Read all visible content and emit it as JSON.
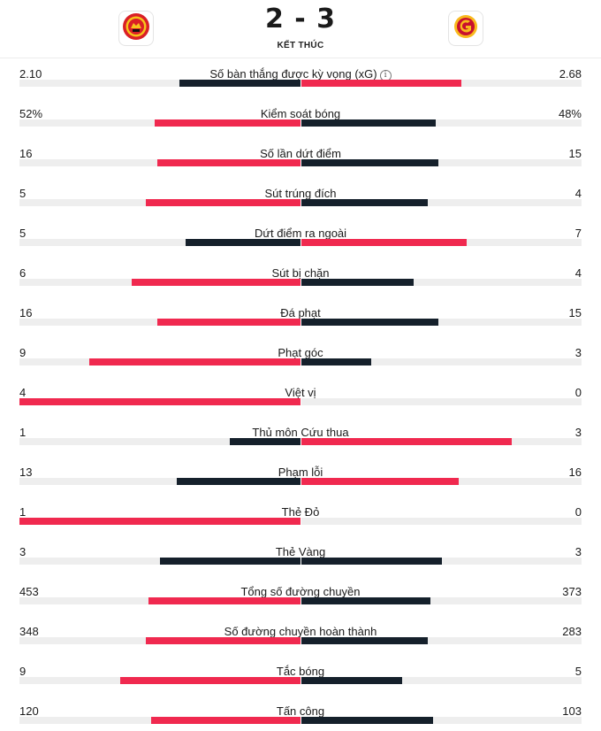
{
  "match": {
    "home_score": "2",
    "separator": "-",
    "away_score": "3",
    "status": "KẾT THÚC",
    "home_crest_icon": "manchester-united-crest-icon",
    "away_crest_icon": "galatasaray-crest-icon"
  },
  "colors": {
    "leader": "#f0294f",
    "trailer": "#15202b",
    "track": "#eeeeee"
  },
  "stats": [
    {
      "name": "Số bàn thắng được kỳ vọng (xG)",
      "home": "2.10",
      "away": "2.68",
      "home_frac": 0.43,
      "away_frac": 0.57,
      "home_color": "dark",
      "away_color": "red",
      "info": true
    },
    {
      "name": "Kiểm soát bóng",
      "home": "52%",
      "away": "48%",
      "home_frac": 0.52,
      "away_frac": 0.48,
      "home_color": "red",
      "away_color": "dark"
    },
    {
      "name": "Số lần dứt điểm",
      "home": "16",
      "away": "15",
      "home_frac": 0.51,
      "away_frac": 0.49,
      "home_color": "red",
      "away_color": "dark"
    },
    {
      "name": "Sút trúng đích",
      "home": "5",
      "away": "4",
      "home_frac": 0.55,
      "away_frac": 0.45,
      "home_color": "red",
      "away_color": "dark"
    },
    {
      "name": "Dứt điểm ra ngoài",
      "home": "5",
      "away": "7",
      "home_frac": 0.41,
      "away_frac": 0.59,
      "home_color": "dark",
      "away_color": "red"
    },
    {
      "name": "Sút bị chặn",
      "home": "6",
      "away": "4",
      "home_frac": 0.6,
      "away_frac": 0.4,
      "home_color": "red",
      "away_color": "dark"
    },
    {
      "name": "Đá phạt",
      "home": "16",
      "away": "15",
      "home_frac": 0.51,
      "away_frac": 0.49,
      "home_color": "red",
      "away_color": "dark"
    },
    {
      "name": "Phạt góc",
      "home": "9",
      "away": "3",
      "home_frac": 0.75,
      "away_frac": 0.25,
      "home_color": "red",
      "away_color": "dark"
    },
    {
      "name": "Việt vị",
      "home": "4",
      "away": "0",
      "home_frac": 1.0,
      "away_frac": 0.0,
      "home_color": "red",
      "away_color": "dark"
    },
    {
      "name": "Thủ môn Cứu thua",
      "home": "1",
      "away": "3",
      "home_frac": 0.25,
      "away_frac": 0.75,
      "home_color": "dark",
      "away_color": "red"
    },
    {
      "name": "Phạm lỗi",
      "home": "13",
      "away": "16",
      "home_frac": 0.44,
      "away_frac": 0.56,
      "home_color": "dark",
      "away_color": "red"
    },
    {
      "name": "Thẻ Đỏ",
      "home": "1",
      "away": "0",
      "home_frac": 1.0,
      "away_frac": 0.0,
      "home_color": "red",
      "away_color": "dark"
    },
    {
      "name": "Thẻ Vàng",
      "home": "3",
      "away": "3",
      "home_frac": 0.5,
      "away_frac": 0.5,
      "home_color": "dark",
      "away_color": "dark"
    },
    {
      "name": "Tổng số đường chuyền",
      "home": "453",
      "away": "373",
      "home_frac": 0.54,
      "away_frac": 0.46,
      "home_color": "red",
      "away_color": "dark"
    },
    {
      "name": "Số đường chuyền hoàn thành",
      "home": "348",
      "away": "283",
      "home_frac": 0.55,
      "away_frac": 0.45,
      "home_color": "red",
      "away_color": "dark"
    },
    {
      "name": "Tắc bóng",
      "home": "9",
      "away": "5",
      "home_frac": 0.64,
      "away_frac": 0.36,
      "home_color": "red",
      "away_color": "dark"
    },
    {
      "name": "Tấn công",
      "home": "120",
      "away": "103",
      "home_frac": 0.53,
      "away_frac": 0.47,
      "home_color": "red",
      "away_color": "dark"
    }
  ]
}
